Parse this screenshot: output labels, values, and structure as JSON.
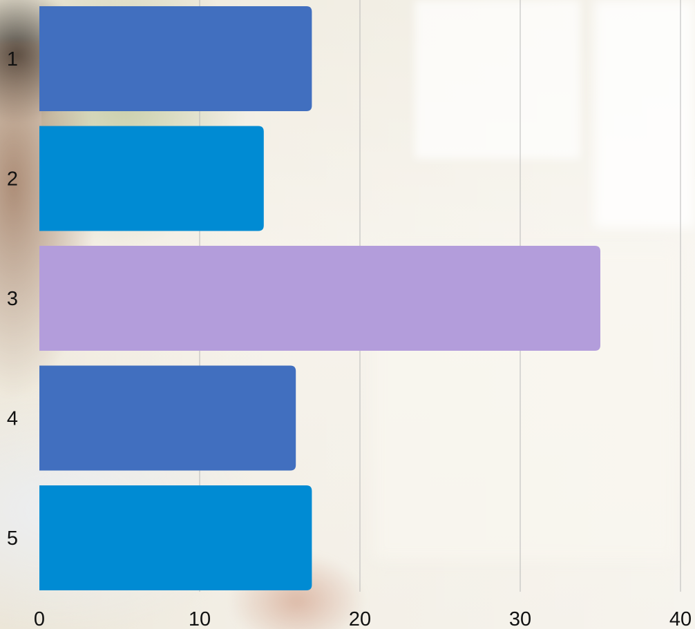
{
  "chart_data": {
    "type": "bar",
    "orientation": "horizontal",
    "categories": [
      "1",
      "2",
      "3",
      "4",
      "5"
    ],
    "values": [
      17,
      14,
      35,
      16,
      17
    ],
    "colors": [
      "#416FBF",
      "#008BD3",
      "#B39DDB",
      "#416FBF",
      "#008BD3"
    ],
    "xlim": [
      0,
      40
    ],
    "x_ticks": [
      "0",
      "10",
      "20",
      "30",
      "40"
    ],
    "grid": "vertical",
    "title": "",
    "xlabel": "",
    "ylabel": ""
  }
}
